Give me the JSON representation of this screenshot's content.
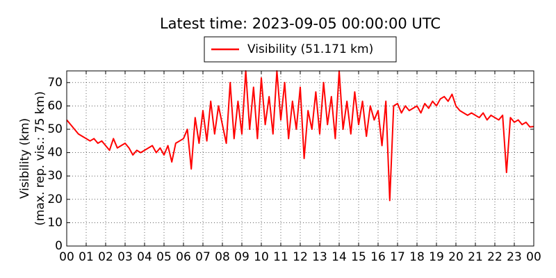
{
  "chart_data": {
    "type": "line",
    "title": "Latest time: 2023-09-05 00:00:00 UTC",
    "ylabel": [
      "Visibility (km)",
      "(max. rep. vis.: 75 km)"
    ],
    "xlim": [
      0,
      24
    ],
    "ylim": [
      0,
      75
    ],
    "yticks": [
      0,
      10,
      20,
      30,
      40,
      50,
      60,
      70
    ],
    "xticks": [
      {
        "value": 0,
        "label": "00"
      },
      {
        "value": 1,
        "label": "01"
      },
      {
        "value": 2,
        "label": "02"
      },
      {
        "value": 3,
        "label": "03"
      },
      {
        "value": 4,
        "label": "04"
      },
      {
        "value": 5,
        "label": "05"
      },
      {
        "value": 6,
        "label": "06"
      },
      {
        "value": 7,
        "label": "07"
      },
      {
        "value": 8,
        "label": "08"
      },
      {
        "value": 9,
        "label": "09"
      },
      {
        "value": 10,
        "label": "10"
      },
      {
        "value": 11,
        "label": "11"
      },
      {
        "value": 12,
        "label": "12"
      },
      {
        "value": 13,
        "label": "13"
      },
      {
        "value": 14,
        "label": "14"
      },
      {
        "value": 15,
        "label": "15"
      },
      {
        "value": 16,
        "label": "16"
      },
      {
        "value": 17,
        "label": "17"
      },
      {
        "value": 18,
        "label": "18"
      },
      {
        "value": 19,
        "label": "19"
      },
      {
        "value": 20,
        "label": "20"
      },
      {
        "value": 21,
        "label": "21"
      },
      {
        "value": 22,
        "label": "22"
      },
      {
        "value": 23,
        "label": "23"
      },
      {
        "value": 24,
        "label": "00"
      }
    ],
    "grid": true,
    "x": [
      0,
      0.2,
      0.4,
      0.6,
      0.8,
      1,
      1.2,
      1.4,
      1.6,
      1.8,
      2,
      2.2,
      2.4,
      2.6,
      2.8,
      3,
      3.2,
      3.4,
      3.6,
      3.8,
      4,
      4.2,
      4.4,
      4.6,
      4.8,
      5,
      5.2,
      5.4,
      5.6,
      5.8,
      6,
      6.2,
      6.4,
      6.6,
      6.8,
      7,
      7.2,
      7.4,
      7.6,
      7.8,
      8,
      8.2,
      8.4,
      8.6,
      8.8,
      9,
      9.2,
      9.4,
      9.6,
      9.8,
      10,
      10.2,
      10.4,
      10.6,
      10.8,
      11,
      11.2,
      11.4,
      11.6,
      11.8,
      12,
      12.2,
      12.4,
      12.6,
      12.8,
      13,
      13.2,
      13.4,
      13.6,
      13.8,
      14,
      14.2,
      14.4,
      14.6,
      14.8,
      15,
      15.2,
      15.4,
      15.6,
      15.8,
      16,
      16.2,
      16.4,
      16.6,
      16.8,
      17,
      17.2,
      17.4,
      17.6,
      17.8,
      18,
      18.2,
      18.4,
      18.6,
      18.8,
      19,
      19.2,
      19.4,
      19.6,
      19.8,
      20,
      20.2,
      20.4,
      20.6,
      20.8,
      21,
      21.2,
      21.4,
      21.6,
      21.8,
      22,
      22.2,
      22.4,
      22.6,
      22.8,
      23,
      23.2,
      23.4,
      23.6,
      23.8,
      24
    ],
    "series": [
      {
        "name": "Visibility (51.171 km)",
        "color": "#ff0000",
        "values": [
          54,
          52,
          50,
          48,
          47,
          46,
          45,
          46,
          44,
          45,
          43,
          41,
          46,
          42,
          43,
          44,
          42,
          39,
          41,
          40,
          41,
          42,
          43,
          40,
          42,
          39,
          43,
          36,
          44,
          45,
          46,
          50,
          33,
          55,
          44,
          58,
          45,
          62,
          48,
          60,
          52,
          44,
          70,
          46,
          62,
          48,
          75,
          50,
          68,
          46,
          72,
          52,
          64,
          48,
          75,
          54,
          70,
          46,
          62,
          50,
          68,
          37.5,
          58,
          50,
          66,
          48,
          70,
          52,
          64,
          46,
          75,
          50,
          62,
          48,
          66,
          52,
          62,
          47,
          60,
          54,
          58,
          43,
          62,
          19.5,
          60,
          61,
          57,
          60,
          58,
          59,
          60,
          57,
          61,
          59,
          62,
          60,
          63,
          64,
          62,
          65,
          60,
          58,
          57,
          56,
          57,
          56,
          55,
          57,
          54,
          56,
          55,
          54,
          56,
          31.5,
          55,
          53,
          54,
          52,
          53,
          51,
          51.171
        ]
      }
    ]
  }
}
